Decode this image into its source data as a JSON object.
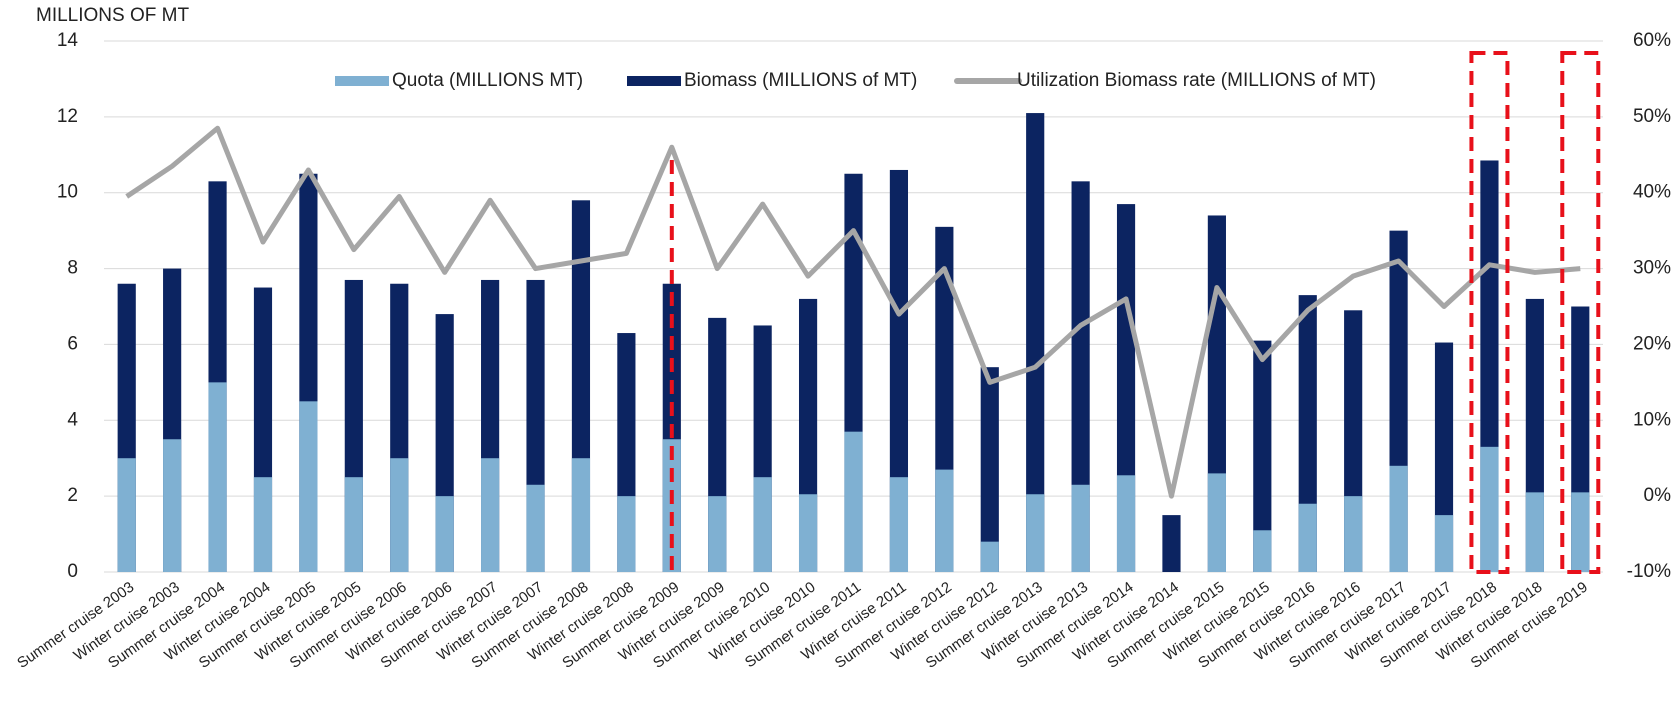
{
  "chart_data": {
    "type": "bar",
    "y_axis_label": "MILLIONS OF MT",
    "categories": [
      "Summer cruise 2003",
      "Winter cruise 2003",
      "Summer cruise 2004",
      "Winter cruise 2004",
      "Summer cruise 2005",
      "Winter cruise 2005",
      "Summer cruise 2006",
      "Winter cruise 2006",
      "Summer cruise 2007",
      "Winter cruise 2007",
      "Summer cruise 2008",
      "Winter cruise 2008",
      "Summer cruise 2009",
      "Winter cruise 2009",
      "Summer cruise 2010",
      "Winter cruise 2010",
      "Summer cruise 2011",
      "Winter cruise 2011",
      "Summer cruise 2012",
      "Winter cruise 2012",
      "Summer cruise 2013",
      "Winter cruise 2013",
      "Summer cruise 2014",
      "Winter cruise 2014",
      "Summer cruise 2015",
      "Winter cruise 2015",
      "Summer cruise 2016",
      "Winter cruise 2016",
      "Summer cruise 2017",
      "Winter cruise 2017",
      "Summer cruise 2018",
      "Winter cruise 2018",
      "Summer cruise 2019"
    ],
    "series": [
      {
        "name": "Quota (MILLIONS MT)",
        "color": "#7fb0d2",
        "type": "bar",
        "values": [
          3,
          3.5,
          5,
          2.5,
          4.5,
          2.5,
          3,
          2,
          3,
          2.3,
          3,
          2,
          3.5,
          2,
          2.5,
          2.05,
          3.7,
          2.5,
          2.7,
          0.8,
          2.05,
          2.3,
          2.55,
          0,
          2.6,
          1.1,
          1.8,
          2,
          2.8,
          1.5,
          3.3,
          2.1,
          2.1
        ]
      },
      {
        "name": "Biomass (MILLIONS of MT)",
        "color": "#0c2461",
        "type": "bar",
        "values": [
          7.6,
          8,
          10.3,
          7.5,
          10.5,
          7.7,
          7.6,
          6.8,
          7.7,
          7.7,
          9.8,
          6.3,
          7.6,
          6.7,
          6.5,
          7.2,
          10.5,
          10.6,
          9.1,
          5.4,
          12.1,
          10.3,
          9.7,
          1.5,
          9.4,
          6.1,
          7.3,
          6.9,
          9,
          6.05,
          10.85,
          7.2,
          7
        ]
      },
      {
        "name": "Utilization Biomass rate (MILLIONS of MT)",
        "color": "#a6a6a6",
        "type": "line",
        "axis": "y2",
        "values": [
          39.5,
          43.5,
          48.5,
          33.5,
          43,
          32.5,
          39.5,
          29.5,
          39,
          30,
          31,
          32,
          46,
          30,
          38.5,
          29,
          35,
          24,
          30,
          15,
          17,
          22.5,
          26,
          0,
          27.5,
          18,
          24.5,
          29,
          31,
          25,
          30.5,
          29.5,
          30
        ]
      }
    ],
    "ylim": [
      0,
      14
    ],
    "yticks": [
      0,
      2,
      4,
      6,
      8,
      10,
      12,
      14
    ],
    "y2lim": [
      -10,
      60
    ],
    "y2ticks": [
      {
        "value": -10,
        "label": "-10%"
      },
      {
        "value": 0,
        "label": "0%"
      },
      {
        "value": 10,
        "label": "10%"
      },
      {
        "value": 20,
        "label": "20%"
      },
      {
        "value": 30,
        "label": "30%"
      },
      {
        "value": 40,
        "label": "40%"
      },
      {
        "value": 50,
        "label": "50%"
      },
      {
        "value": 60,
        "label": "60%"
      }
    ],
    "grid": true,
    "legend": "top"
  }
}
